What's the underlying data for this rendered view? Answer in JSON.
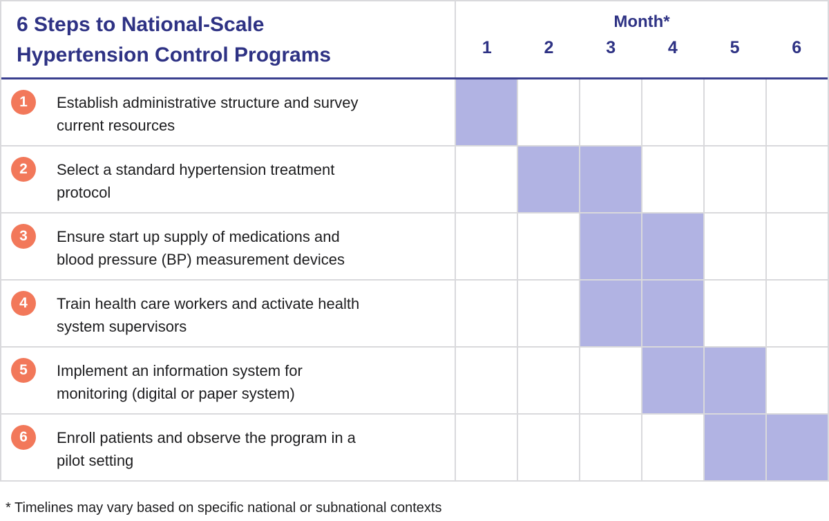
{
  "ui": {
    "header": {
      "title_lines": [
        "6 Steps to National-Scale",
        "Hypertension Control Programs"
      ],
      "month_label": "Month*",
      "month_numbers": [
        "1",
        "2",
        "3",
        "4",
        "5",
        "6"
      ]
    },
    "steps": [
      {
        "badge": "1",
        "lines": [
          "Establish administrative structure and survey",
          "current resources"
        ],
        "active_months": [
          1
        ]
      },
      {
        "badge": "2",
        "lines": [
          "Select a standard hypertension treatment",
          "protocol"
        ],
        "active_months": [
          2,
          3
        ]
      },
      {
        "badge": "3",
        "lines": [
          "Ensure start up supply of medications and",
          "blood pressure (BP) measurement devices"
        ],
        "active_months": [
          3,
          4
        ]
      },
      {
        "badge": "4",
        "lines": [
          "Train health care workers and activate health",
          "system supervisors"
        ],
        "active_months": [
          3,
          4
        ]
      },
      {
        "badge": "5",
        "lines": [
          "Implement an information system for",
          "monitoring (digital or paper system)"
        ],
        "active_months": [
          4,
          5
        ]
      },
      {
        "badge": "6",
        "lines": [
          "Enroll patients and observe the program in a",
          "pilot setting"
        ],
        "active_months": [
          5,
          6
        ]
      }
    ],
    "footnote": "* Timelines may vary based on specific national or subnational contexts",
    "colors": {
      "navy": "#2E3284",
      "navy_line": "#3A3F8F",
      "orange": "#F2785A",
      "cell_fill": "#B1B3E3",
      "grid_line": "#D9D9DC",
      "text": "#1C1C1E",
      "background": "#FFFFFF"
    }
  },
  "chart_data": {
    "type": "table",
    "subtype": "gantt-timeline",
    "title": "6 Steps to National-Scale Hypertension Control Programs",
    "xlabel": "Month*",
    "x_ticks": [
      "1",
      "2",
      "3",
      "4",
      "5",
      "6"
    ],
    "x_range": [
      1,
      6
    ],
    "grid": true,
    "rows": [
      {
        "step": 1,
        "label": "Establish administrative structure and survey current resources",
        "active_months": [
          1
        ]
      },
      {
        "step": 2,
        "label": "Select a standard hypertension treatment protocol",
        "active_months": [
          2,
          3
        ]
      },
      {
        "step": 3,
        "label": "Ensure start up supply of medications and blood pressure (BP) measurement devices",
        "active_months": [
          3,
          4
        ]
      },
      {
        "step": 4,
        "label": "Train health care workers and activate health system supervisors",
        "active_months": [
          3,
          4
        ]
      },
      {
        "step": 5,
        "label": "Implement an information system for monitoring (digital or paper system)",
        "active_months": [
          4,
          5
        ]
      },
      {
        "step": 6,
        "label": "Enroll patients and observe the program in a pilot setting",
        "active_months": [
          5,
          6
        ]
      }
    ],
    "footnote": "* Timelines may vary based on specific national or subnational contexts"
  }
}
